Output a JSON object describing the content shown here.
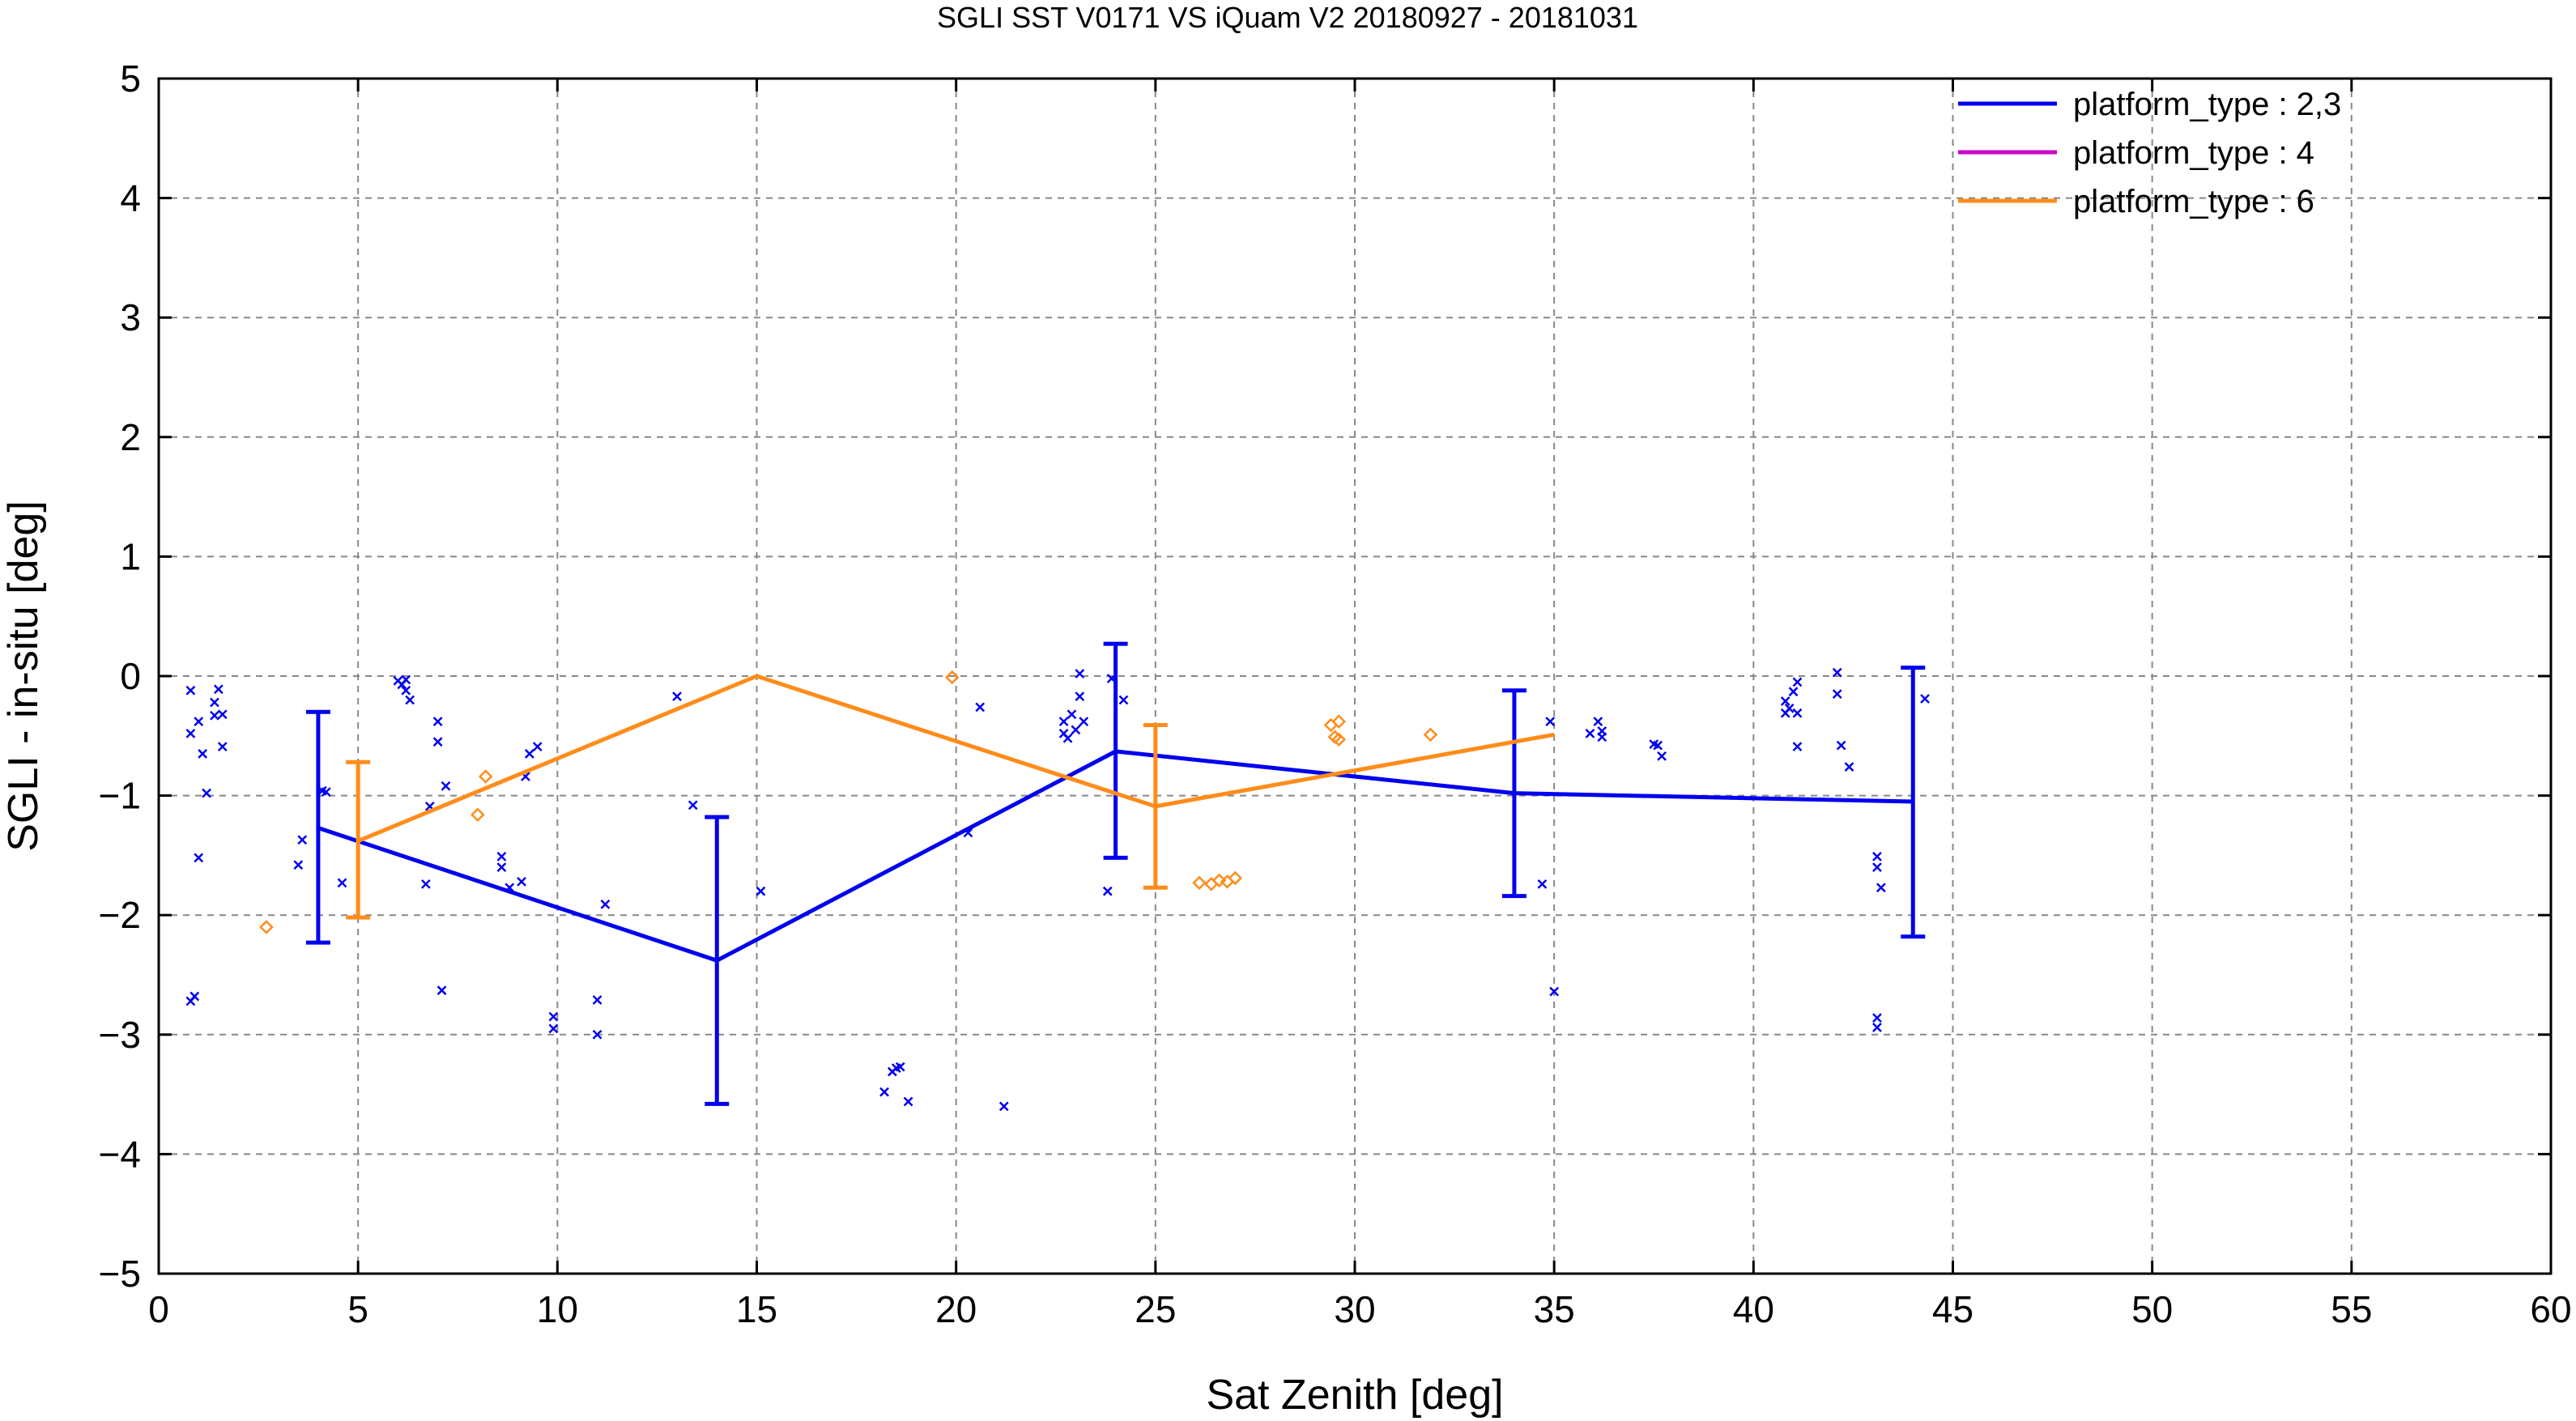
{
  "chart_data": {
    "type": "line",
    "title": "SGLI SST V0171 VS iQuam V2 20180927 - 20181031",
    "xlabel": "Sat Zenith [deg]",
    "ylabel": "SGLI - in-situ [deg]",
    "xlim": [
      0,
      60
    ],
    "ylim": [
      -5,
      5
    ],
    "xticks": [
      0,
      5,
      10,
      15,
      20,
      25,
      30,
      35,
      40,
      45,
      50,
      55,
      60
    ],
    "yticks": [
      -5,
      -4,
      -3,
      -2,
      -1,
      0,
      1,
      2,
      3,
      4,
      5
    ],
    "xtick_labels": [
      "0",
      "5",
      "10",
      "15",
      "20",
      "25",
      "30",
      "35",
      "40",
      "45",
      "50",
      "55",
      "60"
    ],
    "ytick_labels": [
      "−5",
      "−4",
      "−3",
      "−2",
      "−1",
      "0",
      "1",
      "2",
      "3",
      "4",
      "5"
    ],
    "grid": true,
    "legend_position": "top-right",
    "series": [
      {
        "name": "platform_type : 2,3",
        "color": "#0000ee",
        "mean_x": [
          4,
          14,
          24,
          34,
          44
        ],
        "mean_y": [
          -1.27,
          -2.38,
          -0.63,
          -0.98,
          -1.05
        ],
        "err_low": [
          -2.23,
          -3.58,
          -1.52,
          -1.84,
          -2.18
        ],
        "err_high": [
          -0.3,
          -1.18,
          0.27,
          -0.12,
          0.07
        ],
        "points": [
          [
            0.8,
            -0.12
          ],
          [
            0.8,
            -0.48
          ],
          [
            1.0,
            -0.38
          ],
          [
            1.1,
            -0.65
          ],
          [
            1.2,
            -0.98
          ],
          [
            1.4,
            -0.22
          ],
          [
            1.4,
            -0.33
          ],
          [
            1.5,
            -0.11
          ],
          [
            1.6,
            -0.32
          ],
          [
            1.6,
            -0.59
          ],
          [
            1.0,
            -1.52
          ],
          [
            0.8,
            -2.72
          ],
          [
            0.9,
            -2.68
          ],
          [
            3.5,
            -1.58
          ],
          [
            3.6,
            -1.37
          ],
          [
            4.1,
            -0.96
          ],
          [
            4.2,
            -0.97
          ],
          [
            4.6,
            -1.73
          ],
          [
            6.0,
            -0.04
          ],
          [
            6.1,
            -0.07
          ],
          [
            6.2,
            -0.03
          ],
          [
            6.2,
            -0.12
          ],
          [
            6.3,
            -0.2
          ],
          [
            6.8,
            -1.09
          ],
          [
            6.7,
            -1.74
          ],
          [
            7.0,
            -0.38
          ],
          [
            7.0,
            -0.55
          ],
          [
            7.2,
            -0.92
          ],
          [
            7.1,
            -2.63
          ],
          [
            8.6,
            -1.51
          ],
          [
            8.6,
            -1.6
          ],
          [
            8.8,
            -1.77
          ],
          [
            9.1,
            -1.72
          ],
          [
            9.2,
            -0.84
          ],
          [
            9.3,
            -0.65
          ],
          [
            9.5,
            -0.59
          ],
          [
            9.9,
            -2.85
          ],
          [
            9.9,
            -2.95
          ],
          [
            11.0,
            -2.71
          ],
          [
            11.0,
            -3.0
          ],
          [
            11.2,
            -1.91
          ],
          [
            13.0,
            -0.17
          ],
          [
            13.4,
            -1.08
          ],
          [
            15.1,
            -1.8
          ],
          [
            18.2,
            -3.48
          ],
          [
            18.4,
            -3.31
          ],
          [
            18.5,
            -3.28
          ],
          [
            18.6,
            -3.27
          ],
          [
            18.8,
            -3.56
          ],
          [
            20.3,
            -1.31
          ],
          [
            20.6,
            -0.26
          ],
          [
            21.2,
            -3.6
          ],
          [
            22.7,
            -0.38
          ],
          [
            22.7,
            -0.48
          ],
          [
            22.8,
            -0.52
          ],
          [
            22.9,
            -0.32
          ],
          [
            23.0,
            -0.45
          ],
          [
            23.1,
            0.02
          ],
          [
            23.1,
            -0.17
          ],
          [
            23.2,
            -0.38
          ],
          [
            23.8,
            -1.8
          ],
          [
            23.9,
            -0.02
          ],
          [
            24.2,
            -0.2
          ],
          [
            34.7,
            -1.74
          ],
          [
            34.9,
            -0.38
          ],
          [
            35.0,
            -2.64
          ],
          [
            35.9,
            -0.48
          ],
          [
            36.1,
            -0.38
          ],
          [
            36.2,
            -0.46
          ],
          [
            36.2,
            -0.51
          ],
          [
            37.5,
            -0.57
          ],
          [
            37.6,
            -0.58
          ],
          [
            37.7,
            -0.67
          ],
          [
            40.8,
            -0.21
          ],
          [
            40.8,
            -0.31
          ],
          [
            40.9,
            -0.27
          ],
          [
            41.0,
            -0.13
          ],
          [
            41.1,
            -0.05
          ],
          [
            41.1,
            -0.31
          ],
          [
            41.1,
            -0.59
          ],
          [
            42.1,
            0.03
          ],
          [
            42.1,
            -0.15
          ],
          [
            42.2,
            -0.58
          ],
          [
            42.4,
            -0.76
          ],
          [
            43.1,
            -1.51
          ],
          [
            43.1,
            -1.6
          ],
          [
            43.1,
            -2.86
          ],
          [
            43.2,
            -1.77
          ],
          [
            43.1,
            -2.94
          ],
          [
            44.3,
            -0.19
          ]
        ]
      },
      {
        "name": "platform_type : 4",
        "color": "#cc00cc",
        "mean_x": [],
        "mean_y": [],
        "err_low": [],
        "err_high": [],
        "points": []
      },
      {
        "name": "platform_type : 6",
        "color": "#ff8c1a",
        "mean_x": [
          5,
          15,
          25,
          35
        ],
        "mean_y": [
          -1.38,
          0.0,
          -1.09,
          -0.49
        ],
        "err_low": [
          -2.02,
          null,
          -1.77,
          null
        ],
        "err_high": [
          -0.72,
          null,
          -0.41,
          null
        ],
        "points": [
          [
            2.7,
            -2.1
          ],
          [
            8.0,
            -1.16
          ],
          [
            8.2,
            -0.84
          ],
          [
            19.9,
            -0.01
          ],
          [
            26.1,
            -1.73
          ],
          [
            26.4,
            -1.74
          ],
          [
            26.6,
            -1.71
          ],
          [
            26.8,
            -1.72
          ],
          [
            27.0,
            -1.69
          ],
          [
            29.4,
            -0.41
          ],
          [
            29.5,
            -0.51
          ],
          [
            29.6,
            -0.38
          ],
          [
            29.6,
            -0.53
          ],
          [
            31.9,
            -0.49
          ]
        ]
      }
    ]
  }
}
